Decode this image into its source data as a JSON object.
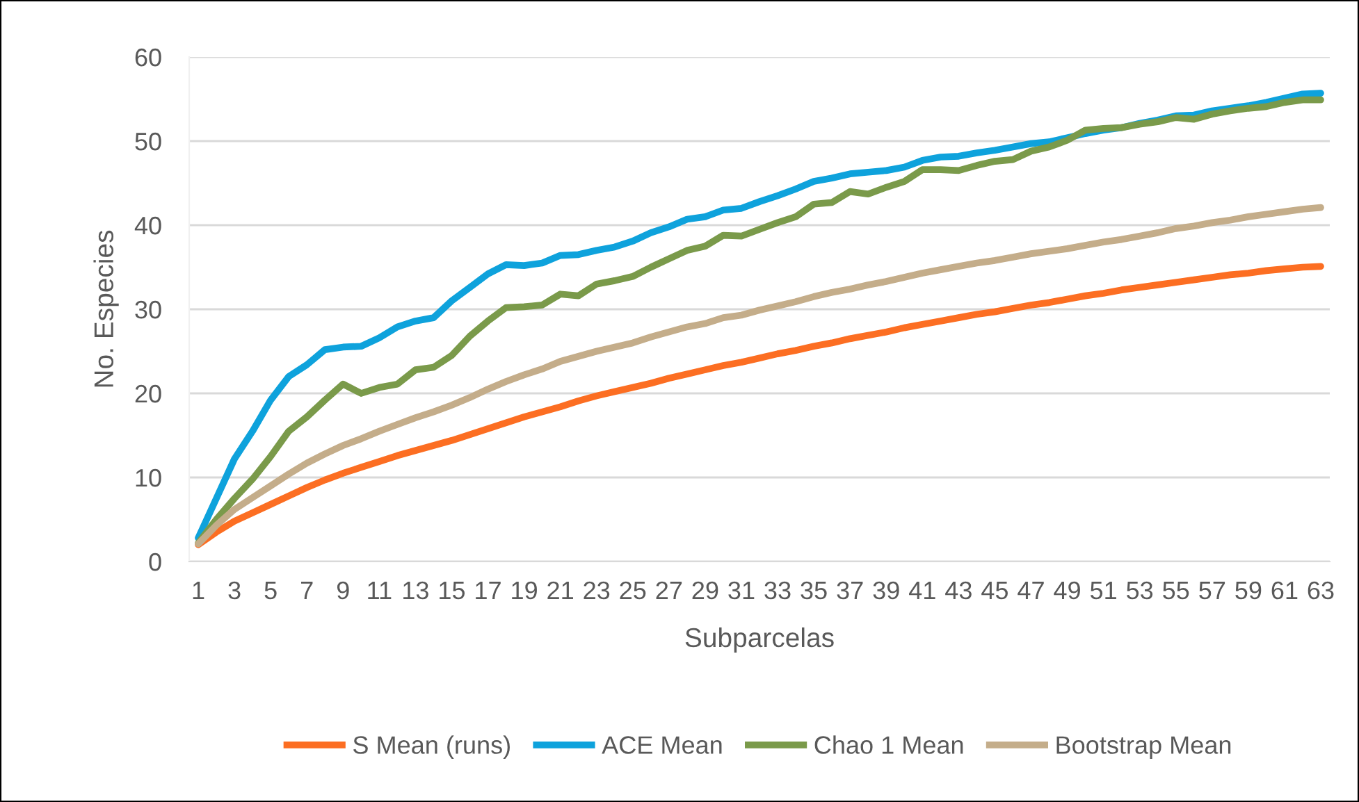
{
  "chart_data": {
    "type": "line",
    "xlabel": "Subparcelas",
    "ylabel": "No. Especies",
    "categories": [
      "1",
      null,
      "3",
      null,
      "5",
      null,
      "7",
      null,
      "9",
      null,
      "11",
      null,
      "13",
      null,
      "15",
      null,
      "17",
      null,
      "19",
      null,
      "21",
      null,
      "23",
      null,
      "25",
      null,
      "27",
      null,
      "29",
      null,
      "31",
      null,
      "33",
      null,
      "35",
      null,
      "37",
      null,
      "39",
      null,
      "41",
      null,
      "43",
      null,
      "45",
      null,
      "47",
      null,
      "49",
      null,
      "51",
      null,
      "53",
      null,
      "55",
      null,
      "57",
      null,
      "59",
      null,
      "61",
      null,
      "63"
    ],
    "ylim": [
      0,
      60
    ],
    "yticks": [
      0,
      10,
      20,
      30,
      40,
      50,
      60
    ],
    "grid": "y",
    "legend": "bottom",
    "marker": "none",
    "line_style": "solid",
    "series": [
      {
        "name": "S Mean (runs)",
        "color": "#fc6e22",
        "values": [
          2,
          3.5,
          4.8,
          5.8,
          6.8,
          7.8,
          8.8,
          9.7,
          10.5,
          11.2,
          11.9,
          12.6,
          13.2,
          13.8,
          14.4,
          15.1,
          15.8,
          16.5,
          17.2,
          17.8,
          18.4,
          19.1,
          19.7,
          20.2,
          20.7,
          21.2,
          21.8,
          22.3,
          22.8,
          23.3,
          23.7,
          24.2,
          24.7,
          25.1,
          25.6,
          26.0,
          26.5,
          26.9,
          27.3,
          27.8,
          28.2,
          28.6,
          29.0,
          29.4,
          29.7,
          30.1,
          30.5,
          30.8,
          31.2,
          31.6,
          31.9,
          32.3,
          32.6,
          32.9,
          33.2,
          33.5,
          33.8,
          34.1,
          34.3,
          34.6,
          34.8,
          35.0,
          35.1
        ]
      },
      {
        "name": "ACE Mean",
        "color": "#0ea2dc",
        "values": [
          2.8,
          7.5,
          12.2,
          15.5,
          19.2,
          22.0,
          23.4,
          25.2,
          25.5,
          25.6,
          26.6,
          27.9,
          28.6,
          29.0,
          31.0,
          32.6,
          34.2,
          35.3,
          35.2,
          35.5,
          36.4,
          36.5,
          37.0,
          37.4,
          38.1,
          39.1,
          39.8,
          40.7,
          41.0,
          41.8,
          42.0,
          42.8,
          43.5,
          44.3,
          45.2,
          45.6,
          46.1,
          46.3,
          46.5,
          46.9,
          47.7,
          48.1,
          48.2,
          48.6,
          48.9,
          49.3,
          49.7,
          49.9,
          50.4,
          50.9,
          51.3,
          51.6,
          52.1,
          52.5,
          53.0,
          53.1,
          53.6,
          53.9,
          54.2,
          54.6,
          55.1,
          55.6,
          55.7
        ]
      },
      {
        "name": "Chao 1 Mean",
        "color": "#7a9a4a",
        "values": [
          2.2,
          5.0,
          7.5,
          9.8,
          12.5,
          15.5,
          17.2,
          19.2,
          21.1,
          20.0,
          20.7,
          21.1,
          22.8,
          23.1,
          24.5,
          26.8,
          28.6,
          30.2,
          30.3,
          30.5,
          31.8,
          31.6,
          33.0,
          33.4,
          33.9,
          35.0,
          36.0,
          37.0,
          37.5,
          38.8,
          38.7,
          39.5,
          40.3,
          41.0,
          42.5,
          42.7,
          44.0,
          43.7,
          44.5,
          45.2,
          46.6,
          46.6,
          46.5,
          47.1,
          47.6,
          47.8,
          48.8,
          49.3,
          50.1,
          51.3,
          51.5,
          51.6,
          52.0,
          52.3,
          52.8,
          52.6,
          53.2,
          53.6,
          53.9,
          54.1,
          54.6,
          54.9,
          54.9
        ]
      },
      {
        "name": "Bootstrap Mean",
        "color": "#c4ad8a",
        "values": [
          2.1,
          4.3,
          6.2,
          7.6,
          9.0,
          10.4,
          11.7,
          12.8,
          13.8,
          14.6,
          15.5,
          16.3,
          17.1,
          17.8,
          18.6,
          19.5,
          20.5,
          21.4,
          22.2,
          22.9,
          23.8,
          24.4,
          25.0,
          25.5,
          26.0,
          26.7,
          27.3,
          27.9,
          28.3,
          29.0,
          29.3,
          29.9,
          30.4,
          30.9,
          31.5,
          32.0,
          32.4,
          32.9,
          33.3,
          33.8,
          34.3,
          34.7,
          35.1,
          35.5,
          35.8,
          36.2,
          36.6,
          36.9,
          37.2,
          37.6,
          38.0,
          38.3,
          38.7,
          39.1,
          39.6,
          39.9,
          40.3,
          40.6,
          41.0,
          41.3,
          41.6,
          41.9,
          42.1
        ]
      }
    ]
  }
}
